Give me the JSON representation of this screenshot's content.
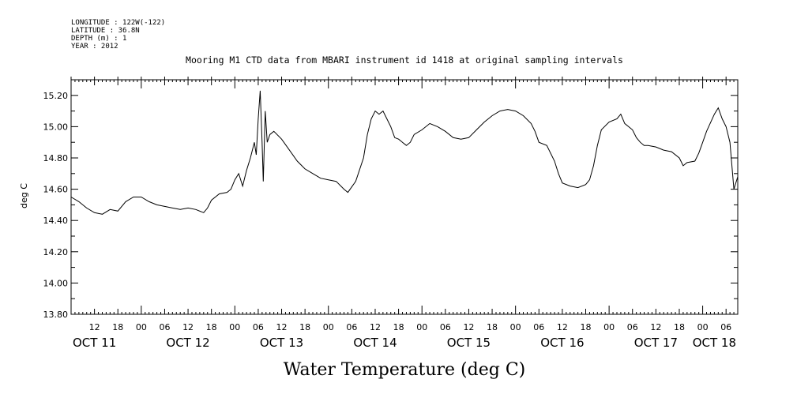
{
  "header": {
    "lines": [
      "LONGITUDE : 122W(-122)",
      "LATITUDE : 36.8N",
      "DEPTH (m) : 1",
      "YEAR : 2012"
    ]
  },
  "chart_data": {
    "type": "line",
    "title": "Mooring M1 CTD data from MBARI instrument id 1418 at original sampling intervals",
    "subtitle": "Water Temperature (deg C)",
    "ylabel": "deg C",
    "xlabel": "",
    "ylim": [
      13.8,
      15.3
    ],
    "xlim_hours": [
      6,
      177
    ],
    "y_ticks": [
      "13.80",
      "14.00",
      "14.20",
      "14.40",
      "14.60",
      "14.80",
      "15.00",
      "15.20"
    ],
    "hour_ticks": [
      "12",
      "18",
      "00",
      "06",
      "12",
      "18",
      "00",
      "06",
      "12",
      "18",
      "00",
      "06",
      "12",
      "18",
      "00",
      "06",
      "12",
      "18",
      "00",
      "06",
      "12",
      "18",
      "00",
      "06",
      "12",
      "18",
      "00",
      "06"
    ],
    "day_labels": [
      "OCT 11",
      "OCT 12",
      "OCT 13",
      "OCT 14",
      "OCT 15",
      "OCT 16",
      "OCT 17",
      "OCT 18"
    ],
    "grid": false,
    "series": [
      {
        "values": [
          [
            6,
            14.55
          ],
          [
            8,
            14.52
          ],
          [
            10,
            14.48
          ],
          [
            12,
            14.45
          ],
          [
            14,
            14.44
          ],
          [
            16,
            14.47
          ],
          [
            18,
            14.46
          ],
          [
            20,
            14.52
          ],
          [
            22,
            14.55
          ],
          [
            24,
            14.55
          ],
          [
            26,
            14.52
          ],
          [
            28,
            14.5
          ],
          [
            30,
            14.49
          ],
          [
            32,
            14.48
          ],
          [
            34,
            14.47
          ],
          [
            36,
            14.48
          ],
          [
            38,
            14.47
          ],
          [
            40,
            14.45
          ],
          [
            41,
            14.48
          ],
          [
            42,
            14.53
          ],
          [
            44,
            14.57
          ],
          [
            46,
            14.58
          ],
          [
            47,
            14.6
          ],
          [
            48,
            14.66
          ],
          [
            49,
            14.7
          ],
          [
            50,
            14.62
          ],
          [
            51,
            14.72
          ],
          [
            52,
            14.8
          ],
          [
            53,
            14.9
          ],
          [
            53.5,
            14.82
          ],
          [
            54,
            15.05
          ],
          [
            54.5,
            15.23
          ],
          [
            55,
            14.9
          ],
          [
            55.3,
            14.65
          ],
          [
            55.8,
            15.1
          ],
          [
            56.3,
            14.9
          ],
          [
            57,
            14.95
          ],
          [
            58,
            14.97
          ],
          [
            60,
            14.92
          ],
          [
            62,
            14.85
          ],
          [
            64,
            14.78
          ],
          [
            66,
            14.73
          ],
          [
            68,
            14.7
          ],
          [
            70,
            14.67
          ],
          [
            72,
            14.66
          ],
          [
            74,
            14.65
          ],
          [
            76,
            14.6
          ],
          [
            77,
            14.58
          ],
          [
            79,
            14.65
          ],
          [
            81,
            14.8
          ],
          [
            82,
            14.95
          ],
          [
            83,
            15.05
          ],
          [
            84,
            15.1
          ],
          [
            85,
            15.08
          ],
          [
            86,
            15.1
          ],
          [
            87,
            15.05
          ],
          [
            88,
            15.0
          ],
          [
            89,
            14.93
          ],
          [
            90,
            14.92
          ],
          [
            91,
            14.9
          ],
          [
            92,
            14.88
          ],
          [
            93,
            14.9
          ],
          [
            94,
            14.95
          ],
          [
            96,
            14.98
          ],
          [
            98,
            15.02
          ],
          [
            100,
            15.0
          ],
          [
            102,
            14.97
          ],
          [
            104,
            14.93
          ],
          [
            106,
            14.92
          ],
          [
            108,
            14.93
          ],
          [
            110,
            14.98
          ],
          [
            112,
            15.03
          ],
          [
            114,
            15.07
          ],
          [
            116,
            15.1
          ],
          [
            118,
            15.11
          ],
          [
            120,
            15.1
          ],
          [
            122,
            15.07
          ],
          [
            124,
            15.02
          ],
          [
            125,
            14.97
          ],
          [
            126,
            14.9
          ],
          [
            128,
            14.88
          ],
          [
            130,
            14.78
          ],
          [
            131,
            14.7
          ],
          [
            132,
            14.64
          ],
          [
            134,
            14.62
          ],
          [
            136,
            14.61
          ],
          [
            138,
            14.63
          ],
          [
            139,
            14.66
          ],
          [
            140,
            14.75
          ],
          [
            141,
            14.88
          ],
          [
            142,
            14.98
          ],
          [
            144,
            15.03
          ],
          [
            146,
            15.05
          ],
          [
            147,
            15.08
          ],
          [
            148,
            15.02
          ],
          [
            149,
            15.0
          ],
          [
            150,
            14.98
          ],
          [
            151,
            14.93
          ],
          [
            152,
            14.9
          ],
          [
            153,
            14.88
          ],
          [
            154,
            14.88
          ],
          [
            156,
            14.87
          ],
          [
            158,
            14.85
          ],
          [
            160,
            14.84
          ],
          [
            162,
            14.8
          ],
          [
            163,
            14.75
          ],
          [
            164,
            14.77
          ],
          [
            166,
            14.78
          ],
          [
            167,
            14.83
          ],
          [
            168,
            14.9
          ],
          [
            169,
            14.97
          ],
          [
            171,
            15.08
          ],
          [
            172,
            15.12
          ],
          [
            173,
            15.05
          ],
          [
            174,
            15.0
          ],
          [
            175,
            14.9
          ],
          [
            176,
            14.6
          ],
          [
            177,
            14.68
          ]
        ]
      }
    ]
  }
}
